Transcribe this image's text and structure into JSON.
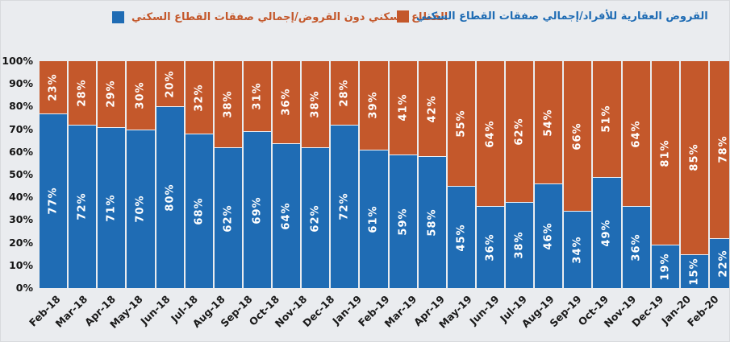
{
  "figure": {
    "background": "#EAECEF"
  },
  "legend": {
    "position": "top",
    "items": [
      {
        "label": "القطاع السكني دون القروض/إجمالي صفقات القطاع السكني",
        "marker_color": "#1F6CB4",
        "text_color": "#C4582B"
      },
      {
        "label": "القروض العقارية للأفراد/إجمالي صفقات القطاع السكني",
        "marker_color": "#C4582B",
        "text_color": "#1F6CB4"
      }
    ]
  },
  "chart_data": {
    "type": "bar",
    "stacked": true,
    "percent_stacked": true,
    "grid": false,
    "legend_position": "top",
    "value_suffix": "%",
    "ylim": [
      0,
      100
    ],
    "yticks": [
      "0%",
      "10%",
      "20%",
      "30%",
      "40%",
      "50%",
      "60%",
      "70%",
      "80%",
      "90%",
      "100%"
    ],
    "categories": [
      "Feb-18",
      "Mar-18",
      "Apr-18",
      "May-18",
      "Jun-18",
      "Jul-18",
      "Aug-18",
      "Sep-18",
      "Oct-18",
      "Nov-18",
      "Dec-18",
      "Jan-19",
      "Feb-19",
      "Mar-19",
      "Apr-19",
      "May-19",
      "Jun-19",
      "Jul-19",
      "Aug-19",
      "Sep-19",
      "Oct-19",
      "Nov-19",
      "Dec-19",
      "Jan-20",
      "Feb-20"
    ],
    "series": [
      {
        "name": "القطاع السكني دون القروض/إجمالي صفقات القطاع السكني",
        "color": "#1F6CB4",
        "label_color": "#FFFFFF",
        "values": [
          77,
          72,
          71,
          70,
          80,
          68,
          62,
          69,
          64,
          62,
          72,
          61,
          59,
          58,
          45,
          36,
          38,
          46,
          34,
          49,
          36,
          19,
          15,
          22,
          22
        ]
      },
      {
        "name": "القروض العقارية للأفراد/إجمالي صفقات القطاع السكني",
        "color": "#C4582B",
        "label_color": "#FFFFFF",
        "values": [
          23,
          28,
          29,
          30,
          20,
          32,
          38,
          31,
          36,
          38,
          28,
          39,
          41,
          42,
          55,
          64,
          62,
          54,
          66,
          51,
          64,
          81,
          85,
          78,
          78
        ]
      }
    ]
  }
}
